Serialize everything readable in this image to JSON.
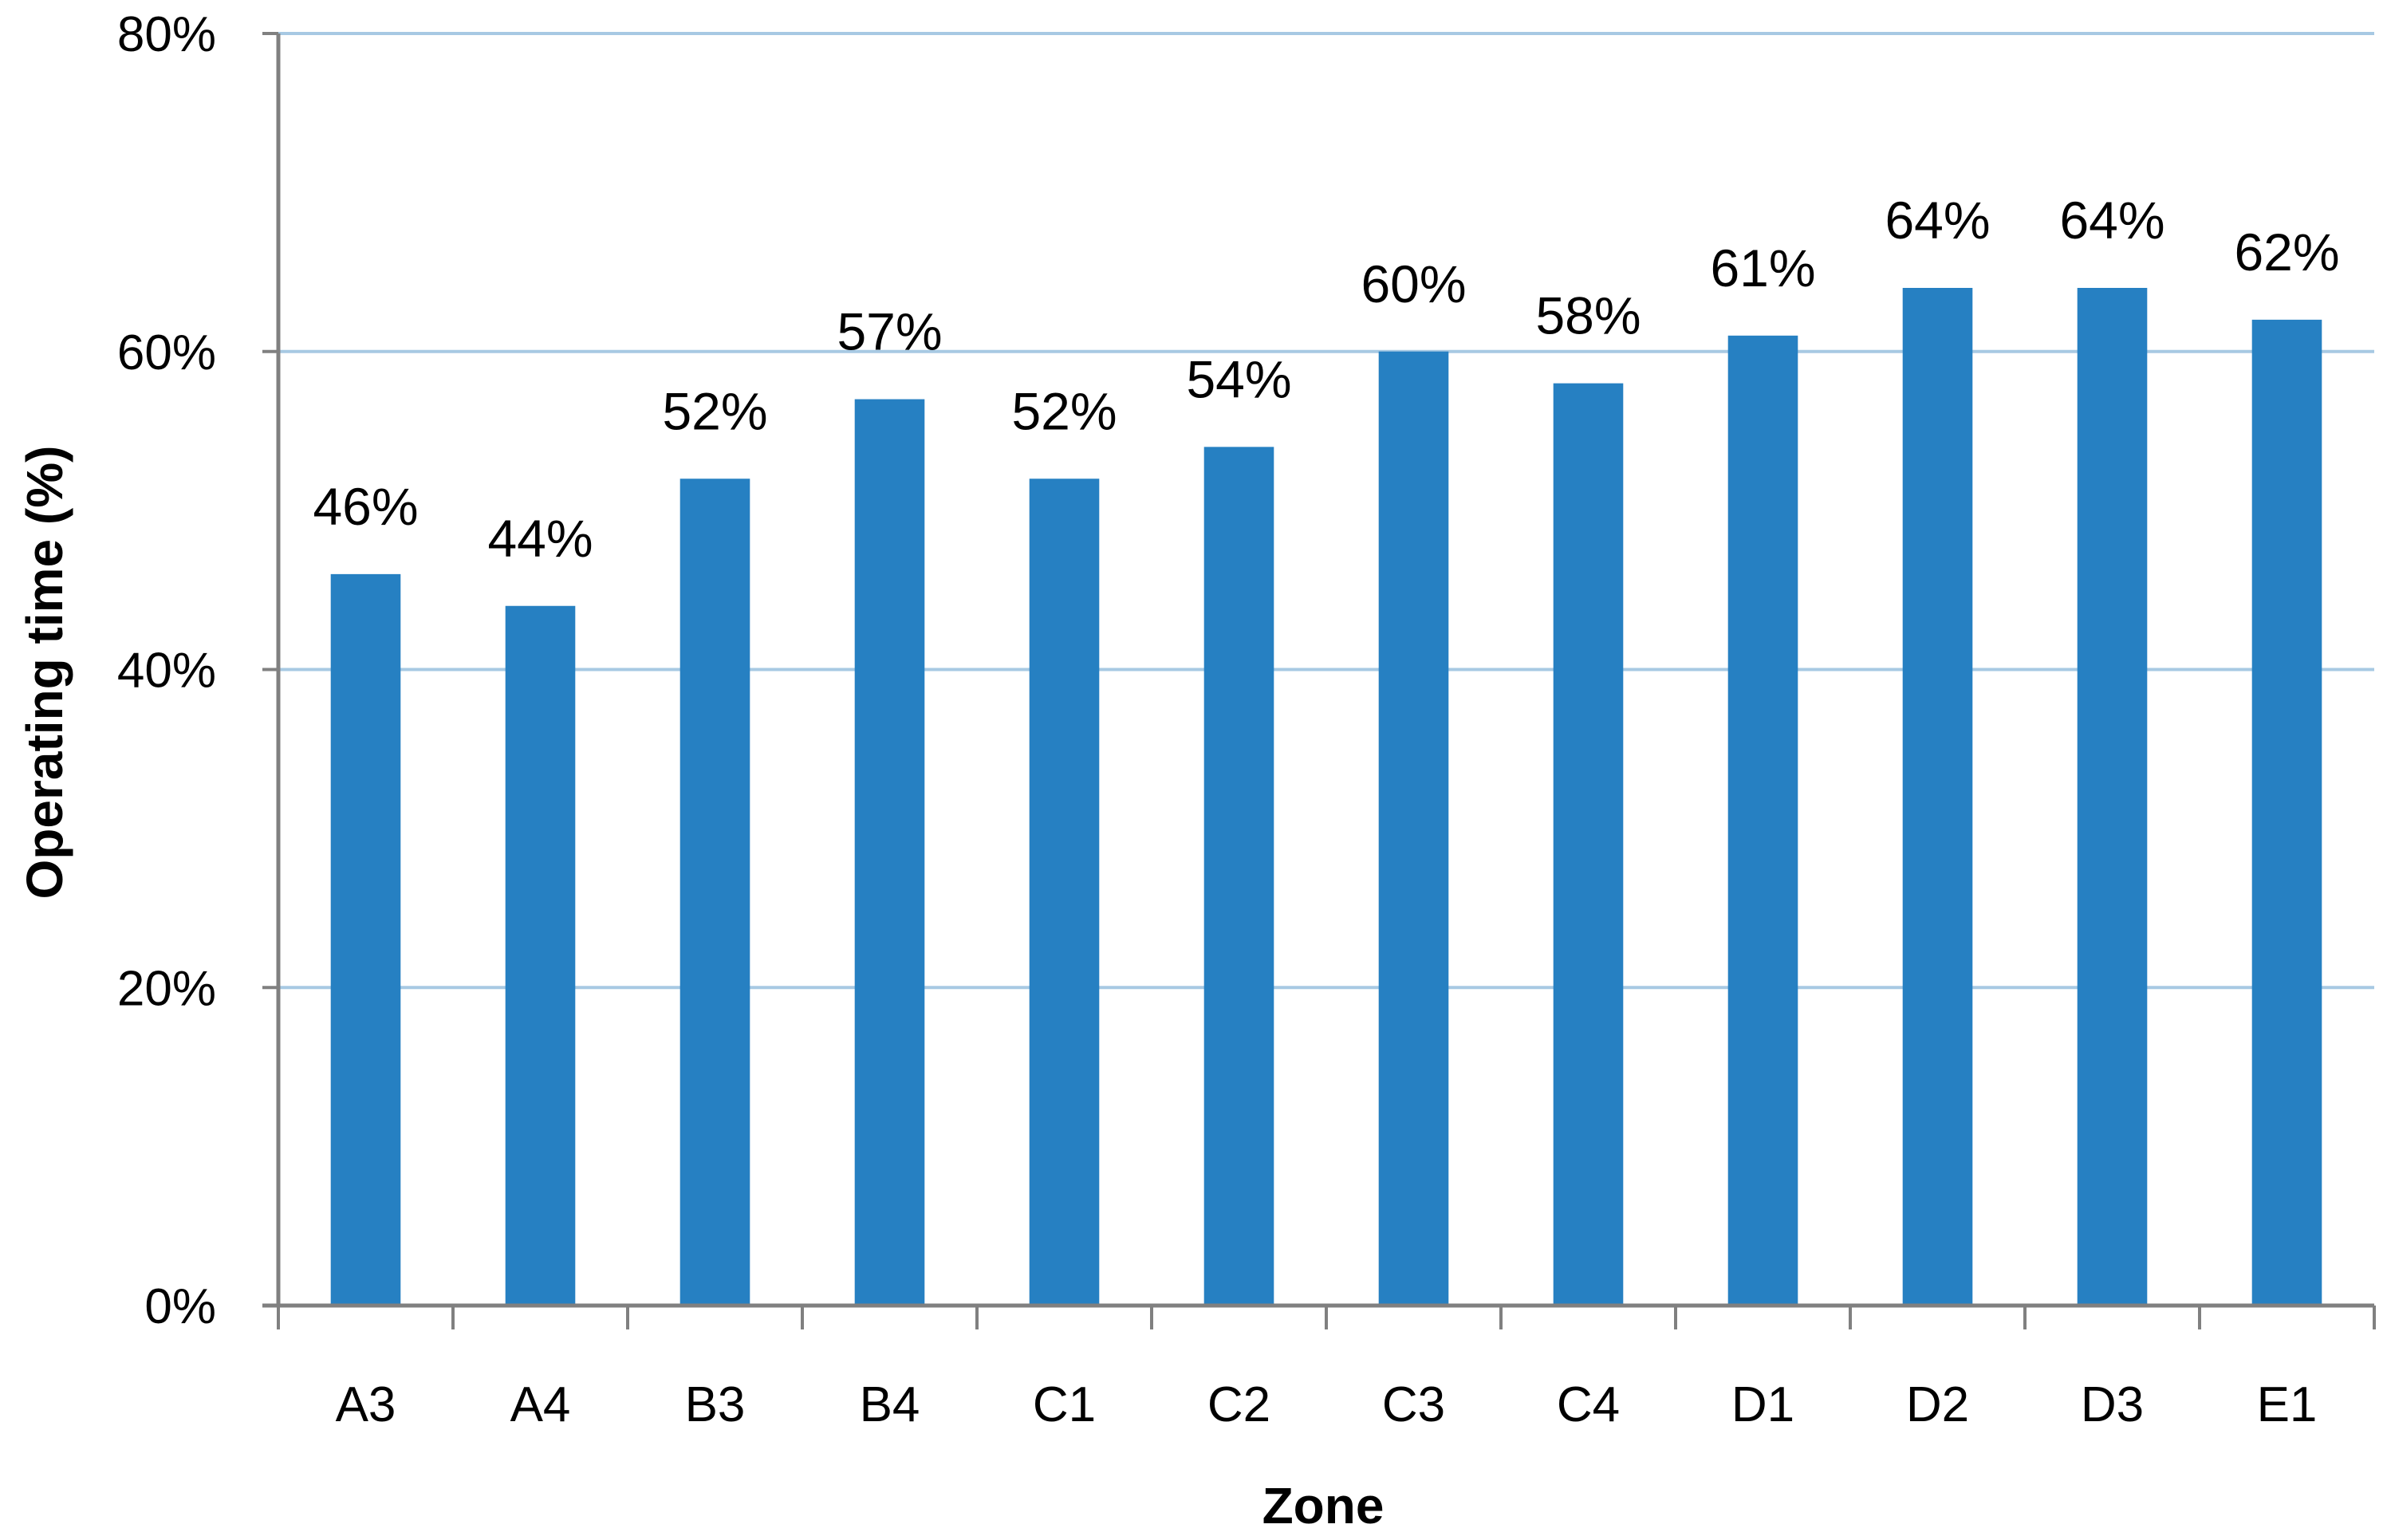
{
  "chart_data": {
    "type": "bar",
    "title": "",
    "xlabel": "Zone",
    "ylabel": "Operating time (%)",
    "categories": [
      "A3",
      "A4",
      "B3",
      "B4",
      "C1",
      "C2",
      "C3",
      "C4",
      "D1",
      "D2",
      "D3",
      "E1"
    ],
    "values": [
      46,
      44,
      52,
      57,
      52,
      54,
      60,
      58,
      61,
      64,
      64,
      62
    ],
    "data_labels": [
      "46%",
      "44%",
      "52%",
      "57%",
      "52%",
      "54%",
      "60%",
      "58%",
      "61%",
      "64%",
      "64%",
      "62%"
    ],
    "ylim": [
      0,
      80
    ],
    "yticks": [
      0,
      20,
      40,
      60,
      80
    ],
    "ytick_labels": [
      "0%",
      "20%",
      "40%",
      "60%",
      "80%"
    ],
    "grid": true,
    "legend": "none",
    "colors": {
      "bar": "#2680C2",
      "grid": "#A7C9E3",
      "axis": "#808080"
    }
  }
}
